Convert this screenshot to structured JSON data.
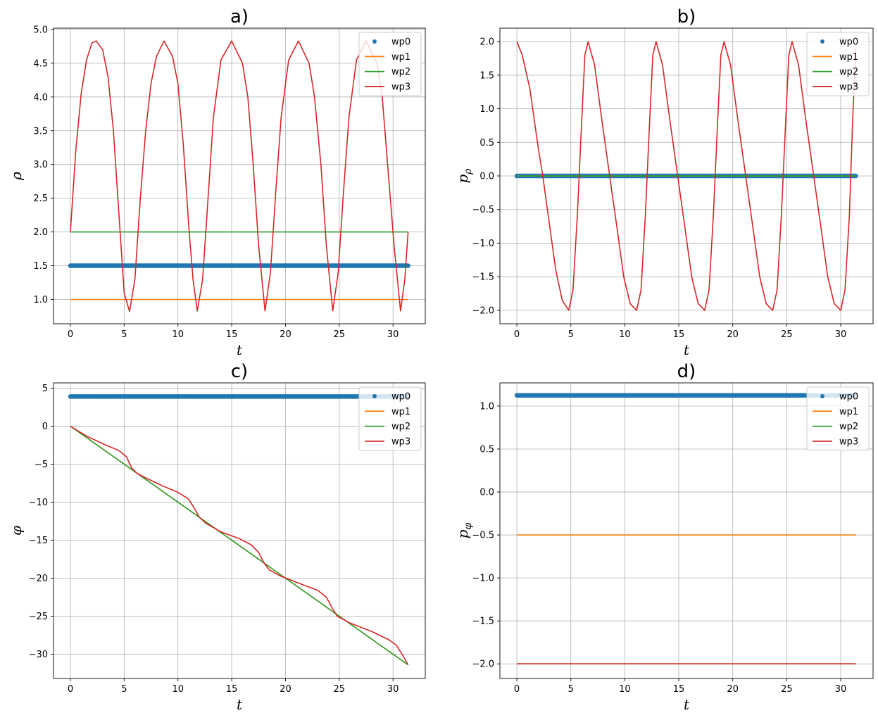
{
  "colors": {
    "wp0": "#1f77b4",
    "wp1": "#ff7f0e",
    "wp2": "#2ca02c",
    "wp3": "#d62728",
    "grid": "#b0b0b0"
  },
  "chart_data": [
    {
      "type": "line",
      "title": "a)",
      "xlabel": "t",
      "ylabel": "ρ",
      "xlim": [
        -1.57,
        33.0
      ],
      "ylim": [
        0.64,
        5.02
      ],
      "xticks": [
        0,
        5,
        10,
        15,
        20,
        25,
        30
      ],
      "yticks": [
        1.0,
        1.5,
        2.0,
        2.5,
        3.0,
        3.5,
        4.0,
        4.5,
        5.0
      ],
      "ytick_labels": [
        "1.0",
        "1.5",
        "2.0",
        "2.5",
        "3.0",
        "3.5",
        "4.0",
        "4.5",
        "5.0"
      ],
      "grid": true,
      "legend_position": "top-right",
      "series": [
        {
          "name": "wp0",
          "style": "points",
          "x": [
            0,
            31.4
          ],
          "y": [
            1.5,
            1.5
          ]
        },
        {
          "name": "wp1",
          "style": "line",
          "x": [
            0,
            31.4
          ],
          "y": [
            1.0,
            1.0
          ]
        },
        {
          "name": "wp2",
          "style": "line",
          "x": [
            0,
            31.4
          ],
          "y": [
            2.0,
            2.0
          ]
        },
        {
          "name": "wp3",
          "style": "line",
          "x": [
            0,
            0.5,
            1.0,
            1.5,
            2.0,
            2.4,
            3.0,
            3.5,
            4.0,
            4.5,
            5.0,
            5.5,
            6.0,
            6.5,
            7.0,
            7.5,
            8.0,
            8.7,
            9.5,
            10.0,
            10.5,
            11.0,
            11.4,
            11.8,
            12.3,
            12.8,
            13.3,
            14.0,
            15.0,
            16.0,
            16.5,
            17.0,
            17.5,
            18.1,
            18.6,
            19.1,
            19.6,
            20.3,
            21.2,
            22.2,
            22.7,
            23.3,
            23.8,
            24.4,
            24.9,
            25.4,
            25.9,
            26.6,
            27.5,
            28.5,
            29.0,
            29.5,
            30.1,
            30.7,
            31.1,
            31.4
          ],
          "y": [
            2.0,
            3.2,
            4.05,
            4.55,
            4.8,
            4.83,
            4.7,
            4.3,
            3.5,
            2.3,
            1.1,
            0.82,
            1.3,
            2.5,
            3.5,
            4.2,
            4.6,
            4.83,
            4.6,
            4.2,
            3.3,
            2.1,
            1.3,
            0.83,
            1.3,
            2.5,
            3.7,
            4.55,
            4.83,
            4.5,
            4.0,
            3.0,
            1.8,
            0.83,
            1.4,
            2.6,
            3.7,
            4.55,
            4.83,
            4.5,
            4.0,
            3.0,
            1.8,
            0.83,
            1.4,
            2.6,
            3.7,
            4.55,
            4.83,
            4.5,
            4.0,
            3.0,
            1.8,
            0.83,
            1.3,
            2.0
          ]
        }
      ]
    },
    {
      "type": "line",
      "title": "b)",
      "xlabel": "t",
      "ylabel": "p_ρ",
      "xlim": [
        -1.57,
        33.0
      ],
      "ylim": [
        -2.2,
        2.2
      ],
      "xticks": [
        0,
        5,
        10,
        15,
        20,
        25,
        30
      ],
      "yticks": [
        -2.0,
        -1.5,
        -1.0,
        -0.5,
        0.0,
        0.5,
        1.0,
        1.5,
        2.0
      ],
      "ytick_labels": [
        "−2.0",
        "−1.5",
        "−1.0",
        "−0.5",
        "0.0",
        "0.5",
        "1.0",
        "1.5",
        "2.0"
      ],
      "grid": true,
      "legend_position": "top-right",
      "series": [
        {
          "name": "wp0",
          "style": "points",
          "x": [
            0,
            31.4
          ],
          "y": [
            0,
            0
          ]
        },
        {
          "name": "wp1",
          "style": "line",
          "x": [
            0,
            31.4
          ],
          "y": [
            0,
            0
          ]
        },
        {
          "name": "wp2",
          "style": "line",
          "x": [
            0,
            31.4
          ],
          "y": [
            0,
            0
          ]
        },
        {
          "name": "wp3",
          "style": "line",
          "x": [
            0,
            0.5,
            1.2,
            2.0,
            2.4,
            3.0,
            3.6,
            4.2,
            4.8,
            5.2,
            5.6,
            6.0,
            6.3,
            6.6,
            7.2,
            7.9,
            8.6,
            9.3,
            9.9,
            10.5,
            11.1,
            11.5,
            11.9,
            12.3,
            12.6,
            12.9,
            13.5,
            14.2,
            14.9,
            15.6,
            16.2,
            16.8,
            17.4,
            17.8,
            18.2,
            18.6,
            18.9,
            19.2,
            19.8,
            20.5,
            21.2,
            21.9,
            22.5,
            23.1,
            23.7,
            24.1,
            24.5,
            24.9,
            25.2,
            25.5,
            26.1,
            26.8,
            27.5,
            28.2,
            28.8,
            29.4,
            30.0,
            30.4,
            30.8,
            31.1,
            31.4
          ],
          "y": [
            2.0,
            1.8,
            1.3,
            0.4,
            0.0,
            -0.7,
            -1.4,
            -1.85,
            -2.0,
            -1.7,
            -0.6,
            0.8,
            1.8,
            2.0,
            1.65,
            0.8,
            0.0,
            -0.8,
            -1.5,
            -1.9,
            -2.0,
            -1.7,
            -0.6,
            0.8,
            1.8,
            2.0,
            1.65,
            0.8,
            0.0,
            -0.8,
            -1.5,
            -1.9,
            -2.0,
            -1.7,
            -0.6,
            0.8,
            1.8,
            2.0,
            1.65,
            0.8,
            0.0,
            -0.8,
            -1.5,
            -1.9,
            -2.0,
            -1.7,
            -0.6,
            0.8,
            1.8,
            2.0,
            1.65,
            0.8,
            0.0,
            -0.8,
            -1.5,
            -1.9,
            -2.0,
            -1.7,
            -0.6,
            0.8,
            1.9
          ]
        }
      ]
    },
    {
      "type": "line",
      "title": "c)",
      "xlabel": "t",
      "ylabel": "φ",
      "xlim": [
        -1.57,
        33.0
      ],
      "ylim": [
        -33.2,
        5.7
      ],
      "xticks": [
        0,
        5,
        10,
        15,
        20,
        25,
        30
      ],
      "yticks": [
        -30,
        -25,
        -20,
        -15,
        -10,
        -5,
        0,
        5
      ],
      "ytick_labels": [
        "−30",
        "−25",
        "−20",
        "−15",
        "−10",
        "−5",
        "0",
        "5"
      ],
      "grid": true,
      "legend_position": "top-right",
      "series": [
        {
          "name": "wp0",
          "style": "points",
          "x": [
            0,
            31.4
          ],
          "y": [
            3.9,
            3.9
          ]
        },
        {
          "name": "wp1",
          "style": "line",
          "x": [
            0,
            31.4
          ],
          "y": [
            0,
            -31.4
          ]
        },
        {
          "name": "wp2",
          "style": "line",
          "x": [
            0,
            31.4
          ],
          "y": [
            0,
            -31.4
          ]
        },
        {
          "name": "wp3",
          "style": "line",
          "x": [
            0,
            1.5,
            3.0,
            4.5,
            5.2,
            5.7,
            6.2,
            7.0,
            8.5,
            10.0,
            11.0,
            11.6,
            12.0,
            12.6,
            14.0,
            15.7,
            16.8,
            17.5,
            18.0,
            18.5,
            19.5,
            21.5,
            23.0,
            23.8,
            24.3,
            24.8,
            26.0,
            28.0,
            29.6,
            30.3,
            30.8,
            31.4
          ],
          "y": [
            0,
            -1.3,
            -2.3,
            -3.2,
            -4.0,
            -5.5,
            -6.2,
            -6.8,
            -7.8,
            -8.7,
            -9.6,
            -11.0,
            -12.0,
            -12.8,
            -13.9,
            -14.8,
            -15.6,
            -16.6,
            -18.0,
            -18.9,
            -19.7,
            -20.8,
            -21.6,
            -22.5,
            -23.8,
            -25.0,
            -25.9,
            -27.0,
            -28.1,
            -28.8,
            -29.9,
            -31.4
          ]
        }
      ]
    },
    {
      "type": "line",
      "title": "d)",
      "xlabel": "t",
      "ylabel": "p_φ",
      "xlim": [
        -1.57,
        33.0
      ],
      "ylim": [
        -2.17,
        1.27
      ],
      "xticks": [
        0,
        5,
        10,
        15,
        20,
        25,
        30
      ],
      "yticks": [
        -2.0,
        -1.5,
        -1.0,
        -0.5,
        0.0,
        0.5,
        1.0
      ],
      "ytick_labels": [
        "−2.0",
        "−1.5",
        "−1.0",
        "−0.5",
        "0.0",
        "0.5",
        "1.0"
      ],
      "grid": true,
      "legend_position": "top-right",
      "series": [
        {
          "name": "wp0",
          "style": "points",
          "x": [
            0,
            31.4
          ],
          "y": [
            1.125,
            1.125
          ]
        },
        {
          "name": "wp1",
          "style": "line",
          "x": [
            0,
            31.4
          ],
          "y": [
            -0.5,
            -0.5
          ]
        },
        {
          "name": "wp2",
          "style": "line",
          "x": [
            0,
            31.4
          ],
          "y": [
            -2.0,
            -2.0
          ]
        },
        {
          "name": "wp3",
          "style": "line",
          "x": [
            0,
            31.4
          ],
          "y": [
            -2.0,
            -2.0
          ]
        }
      ]
    }
  ]
}
